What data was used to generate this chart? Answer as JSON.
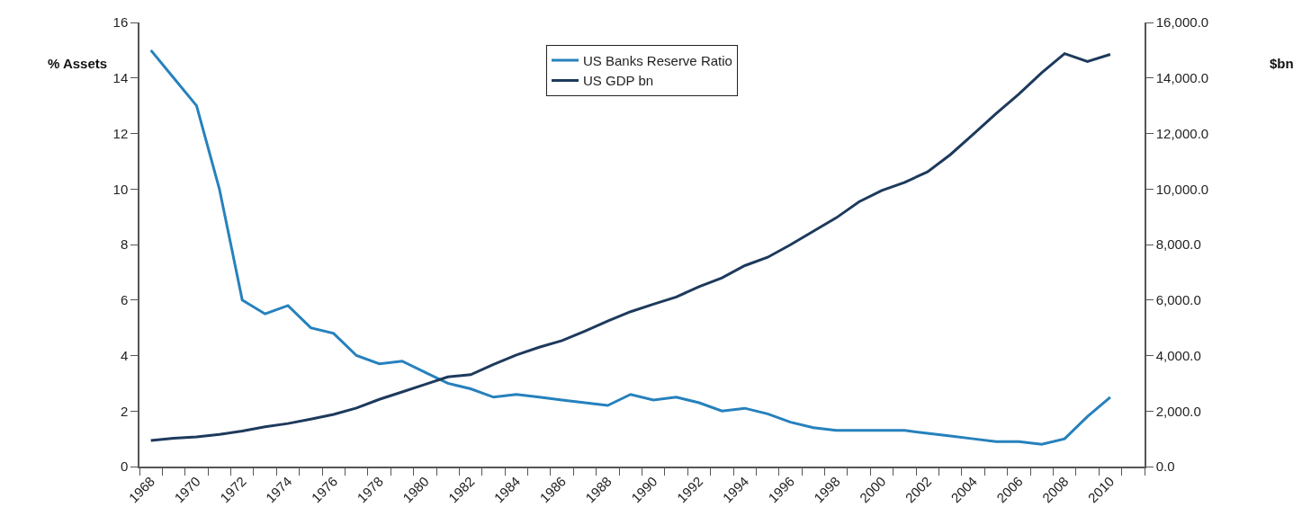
{
  "chart_data": {
    "type": "line",
    "ylabel": "% Assets",
    "y2label": "$bn",
    "categories": [
      "1968",
      null,
      "1970",
      null,
      "1972",
      null,
      "1974",
      null,
      "1976",
      null,
      "1978",
      null,
      "1980",
      null,
      "1982",
      null,
      "1984",
      null,
      "1986",
      null,
      "1988",
      null,
      "1990",
      null,
      "1992",
      null,
      "1994",
      null,
      "1996",
      null,
      "1998",
      null,
      "2000",
      null,
      "2002",
      null,
      "2004",
      null,
      "2006",
      null,
      "2008",
      null,
      "2010",
      null
    ],
    "series": [
      {
        "name": "US Banks Reserve Ratio",
        "color": "#2681bd",
        "values": [
          15,
          14,
          13,
          10,
          6,
          5.5,
          5.8,
          5.0,
          4.8,
          4.0,
          3.7,
          3.8,
          3.4,
          3.0,
          2.8,
          2.5,
          2.6,
          2.5,
          2.4,
          2.3,
          2.2,
          2.6,
          2.4,
          2.5,
          2.3,
          2.0,
          2.1,
          1.9,
          1.6,
          1.4,
          1.3,
          1.3,
          1.3,
          1.3,
          1.2,
          1.1,
          1.0,
          0.9,
          0.9,
          0.8,
          1.0,
          1.8,
          2.5,
          null
        ]
      },
      {
        "name": "US GDP bn",
        "color": "#1d3a5c",
        "axis": "y2",
        "values": [
          940,
          1020,
          1070,
          1160,
          1280,
          1430,
          1550,
          1710,
          1880,
          2110,
          2420,
          2690,
          2960,
          3230,
          3310,
          3680,
          4020,
          4300,
          4540,
          4880,
          5240,
          5580,
          5850,
          6110,
          6480,
          6800,
          7240,
          7540,
          7990,
          8480,
          8960,
          9540,
          9950,
          10240,
          10620,
          11240,
          11970,
          12720,
          13420,
          14190,
          14880,
          14590,
          14850,
          null
        ]
      }
    ],
    "ylim": [
      0,
      16
    ],
    "yticks": [
      0,
      2,
      4,
      6,
      8,
      10,
      12,
      14,
      16
    ],
    "y2lim": [
      0,
      16000
    ],
    "y2ticks": [
      {
        "value": 0,
        "label": "0.0"
      },
      {
        "value": 2000,
        "label": "2,000.0"
      },
      {
        "value": 4000,
        "label": "4,000.0"
      },
      {
        "value": 6000,
        "label": "6,000.0"
      },
      {
        "value": 8000,
        "label": "8,000.0"
      },
      {
        "value": 10000,
        "label": "10,000.0"
      },
      {
        "value": 12000,
        "label": "12,000.0"
      },
      {
        "value": 14000,
        "label": "14,000.0"
      },
      {
        "value": 16000,
        "label": "16,000.0"
      }
    ],
    "legend": "top",
    "marker": "none",
    "line_style": "solid"
  }
}
